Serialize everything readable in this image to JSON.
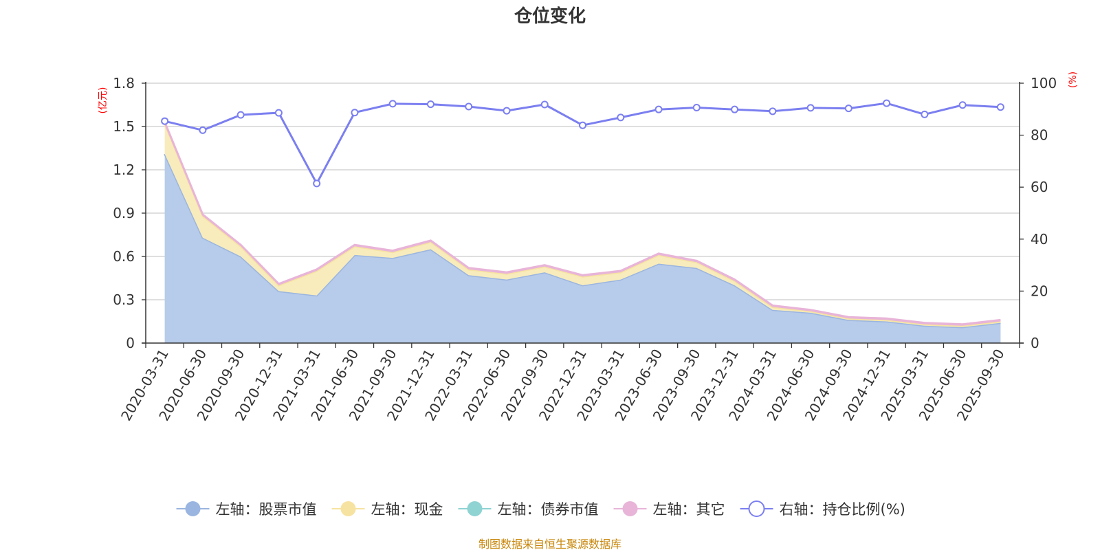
{
  "chart_data": {
    "type": "area",
    "title": "仓位变化",
    "categories": [
      "2020-03-31",
      "2020-06-30",
      "2020-09-30",
      "2020-12-31",
      "2021-03-31",
      "2021-06-30",
      "2021-09-30",
      "2021-12-31",
      "2022-03-31",
      "2022-06-30",
      "2022-09-30",
      "2022-12-31",
      "2023-03-31",
      "2023-06-30",
      "2023-09-30",
      "2023-12-31",
      "2024-03-31",
      "2024-06-30",
      "2024-09-30",
      "2024-12-31",
      "2025-03-31",
      "2025-06-30",
      "2025-09-30"
    ],
    "left_axis": {
      "unit": "(亿元)",
      "ylim": [
        0,
        1.8
      ],
      "ticks": [
        "0",
        "0.3",
        "0.6",
        "0.9",
        "1.2",
        "1.5",
        "1.8"
      ],
      "tick_values": [
        0,
        0.3,
        0.6,
        0.9,
        1.2,
        1.5,
        1.8
      ]
    },
    "right_axis": {
      "unit": "(%)",
      "ylim": [
        0,
        100
      ],
      "ticks": [
        "0",
        "20",
        "40",
        "60",
        "80",
        "100"
      ],
      "tick_values": [
        0,
        20,
        40,
        60,
        80,
        100
      ]
    },
    "grid": true,
    "legend_position": "bottom",
    "series": [
      {
        "name": "左轴：股票市值",
        "axis": "left",
        "type": "area",
        "color": "#9ab5e0",
        "fill": "#b7cbea",
        "values": [
          1.31,
          0.73,
          0.6,
          0.36,
          0.33,
          0.61,
          0.59,
          0.65,
          0.47,
          0.44,
          0.49,
          0.4,
          0.44,
          0.55,
          0.52,
          0.4,
          0.23,
          0.21,
          0.16,
          0.15,
          0.12,
          0.11,
          0.14
        ]
      },
      {
        "name": "左轴：现金",
        "axis": "left",
        "type": "area",
        "color": "#f6e3a1",
        "fill": "#f8ecbc",
        "values": [
          0.21,
          0.15,
          0.07,
          0.04,
          0.17,
          0.06,
          0.04,
          0.05,
          0.04,
          0.04,
          0.04,
          0.06,
          0.05,
          0.06,
          0.04,
          0.03,
          0.02,
          0.01,
          0.01,
          0.01,
          0.01,
          0.01,
          0.01
        ]
      },
      {
        "name": "左轴：债券市值",
        "axis": "left",
        "type": "area",
        "color": "#8fd3d3",
        "fill": "#8fd3d3",
        "values": [
          0,
          0,
          0,
          0,
          0,
          0,
          0,
          0,
          0,
          0,
          0,
          0,
          0,
          0,
          0,
          0,
          0,
          0,
          0,
          0,
          0,
          0,
          0
        ]
      },
      {
        "name": "左轴：其它",
        "axis": "left",
        "type": "area",
        "color": "#e8b4d8",
        "fill": "#e8b4d8",
        "values": [
          0.01,
          0.01,
          0.01,
          0.01,
          0.01,
          0.01,
          0.01,
          0.01,
          0.01,
          0.01,
          0.01,
          0.01,
          0.01,
          0.01,
          0.01,
          0.01,
          0.01,
          0.01,
          0.01,
          0.01,
          0.01,
          0.01,
          0.01
        ]
      },
      {
        "name": "右轴：持仓比例(%)",
        "axis": "right",
        "type": "line",
        "color": "#7b7ff0",
        "values": [
          85.4,
          81.9,
          87.8,
          88.6,
          61.4,
          88.7,
          92.1,
          91.9,
          91.0,
          89.4,
          91.8,
          83.8,
          86.8,
          89.9,
          90.6,
          89.9,
          89.2,
          90.5,
          90.3,
          92.3,
          88.0,
          91.6,
          90.8
        ]
      }
    ],
    "source_note": "制图数据来自恒生聚源数据库"
  }
}
